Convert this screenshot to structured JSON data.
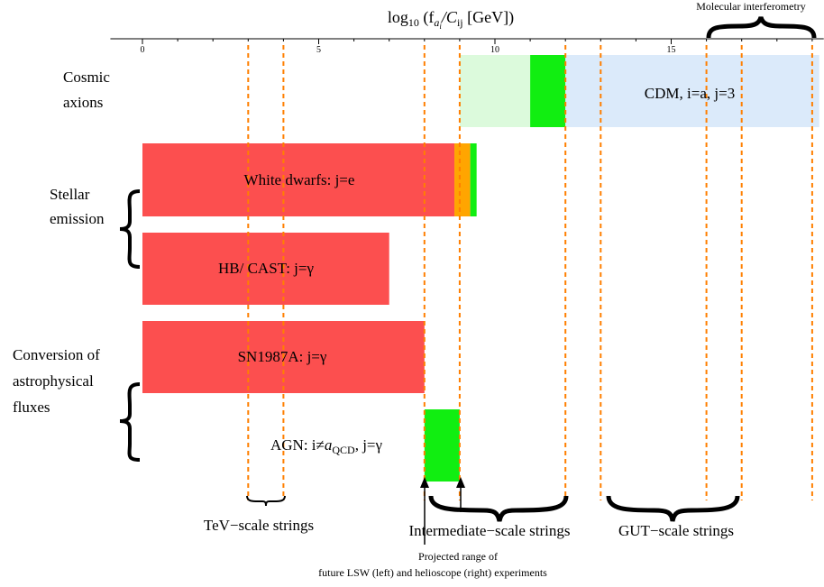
{
  "chart_data": {
    "type": "bar",
    "title": "log10 (fai/Cij [GeV])",
    "title_parts": {
      "pre": "log",
      "sub1": "10",
      "mid1": " (f",
      "sub2": "a",
      "sub3": "i",
      "mid2": "/C",
      "sub4": "ij",
      "post": " [GeV])"
    },
    "xlim": [
      -0.5,
      19.2
    ],
    "ticks": [
      {
        "value": 0,
        "label": "0"
      },
      {
        "value": 5,
        "label": "5"
      },
      {
        "value": 10,
        "label": "10"
      },
      {
        "value": 15,
        "label": "15"
      }
    ],
    "group_labels": [
      {
        "id": "cosmic",
        "lines": [
          "Cosmic",
          "axions"
        ]
      },
      {
        "id": "stellar",
        "lines": [
          "Stellar",
          "emission"
        ]
      },
      {
        "id": "conversion",
        "lines": [
          "Conversion of",
          "astrophysical",
          "fluxes"
        ]
      }
    ],
    "rows": [
      {
        "id": "cdm",
        "label": "CDM, i=a,  j=3",
        "segments": [
          {
            "from": 9.0,
            "to": 11.0,
            "color": "#dcfadc"
          },
          {
            "from": 11.0,
            "to": 12.0,
            "color": "#11ee11"
          },
          {
            "from": 12.0,
            "to": 19.2,
            "color": "#dbeafa"
          }
        ]
      },
      {
        "id": "white-dwarfs",
        "label": "White dwarfs:   j=e",
        "segments": [
          {
            "from": 0.0,
            "to": 8.85,
            "color": "#fc4f4f"
          },
          {
            "from": 8.85,
            "to": 9.3,
            "color": "#ffa500"
          },
          {
            "from": 9.3,
            "to": 9.48,
            "color": "#11ee11"
          }
        ]
      },
      {
        "id": "hb-cast",
        "label": "HB/ CAST:   j=γ",
        "segments": [
          {
            "from": 0.0,
            "to": 7.0,
            "color": "#fc4f4f"
          }
        ]
      },
      {
        "id": "sn1987a",
        "label": "SN1987A:   j=γ",
        "segments": [
          {
            "from": 0.0,
            "to": 8.0,
            "color": "#fc4f4f"
          }
        ]
      },
      {
        "id": "agn",
        "label_parts": {
          "pre": "AGN:  i≠",
          "a": "a",
          "sub": "QCD",
          "post": ", j=γ"
        },
        "segments": [
          {
            "from": 8.0,
            "to": 9.0,
            "color": "#11ee11"
          }
        ]
      }
    ],
    "dashed_lines": [
      3.0,
      4.0,
      8.0,
      9.0,
      12.0,
      13.0,
      16.0,
      17.0,
      19.0
    ],
    "dashed_color": "#ff7f00",
    "string_ranges": [
      {
        "label": "TeV−scale strings",
        "from": 3.0,
        "to": 4.0
      },
      {
        "label": "Intermediate−scale strings",
        "from": 8.0,
        "to": 12.0
      },
      {
        "label": "GUT−scale strings",
        "from": 13.0,
        "to": 17.0
      }
    ],
    "top_range": {
      "label": "Molecular interferometry",
      "from": 16.0,
      "to": 19.0
    },
    "projection_note": [
      "Projected range of",
      "future LSW (left) and helioscope (right) experiments"
    ]
  }
}
